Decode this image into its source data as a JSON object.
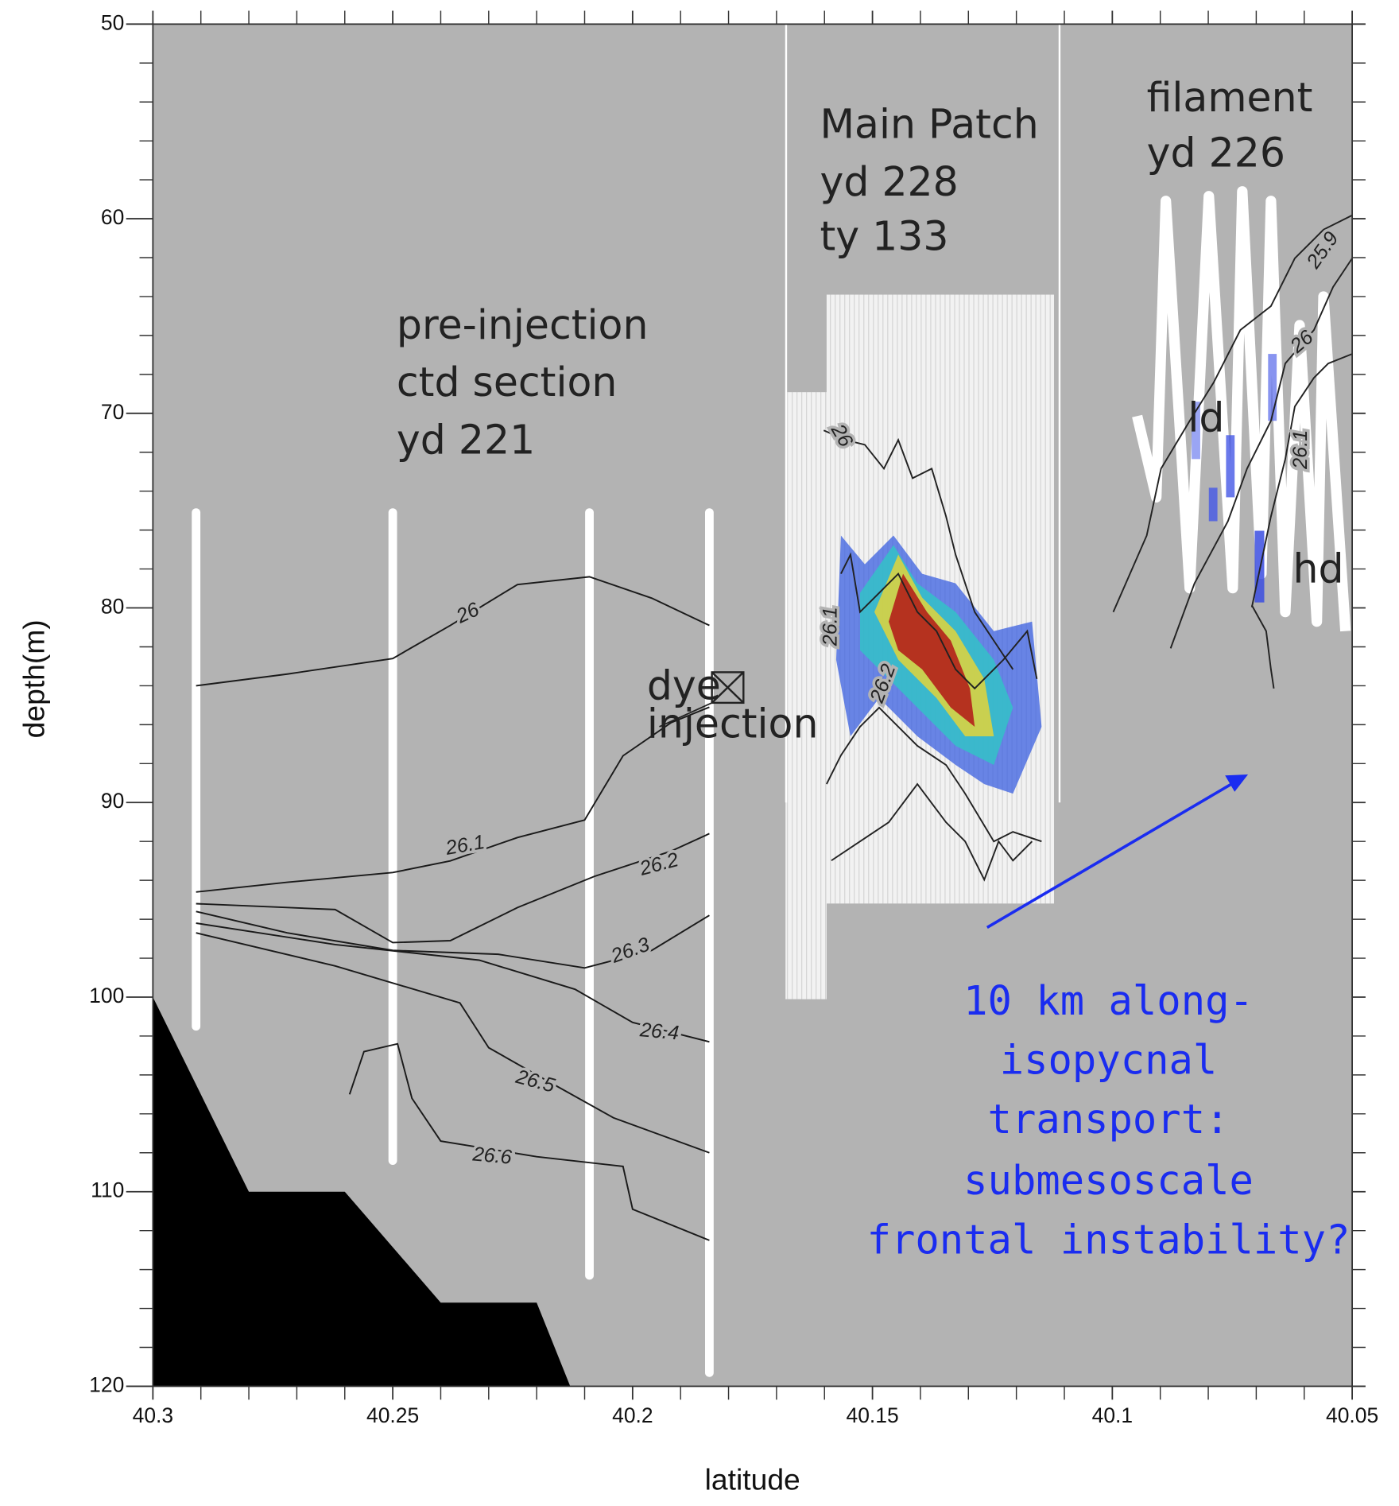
{
  "chart_data": {
    "type": "section",
    "xlabel": "latitude",
    "ylabel": "depth(m)",
    "xlim": [
      40.3,
      40.05
    ],
    "ylim": [
      50,
      120
    ],
    "xticks": [
      40.3,
      40.25,
      40.2,
      40.15,
      40.1,
      40.05
    ],
    "yticks": [
      50,
      60,
      70,
      80,
      90,
      100,
      110,
      120
    ],
    "xminorticks": [
      40.29,
      40.28,
      40.27,
      40.26,
      40.24,
      40.23,
      40.22,
      40.21,
      40.19,
      40.18,
      40.17,
      40.16,
      40.14,
      40.13,
      40.12,
      40.11,
      40.09,
      40.08,
      40.07,
      40.06
    ],
    "yminorticks": [
      52,
      54,
      56,
      58,
      62,
      64,
      66,
      68,
      72,
      74,
      76,
      78,
      82,
      84,
      86,
      88,
      92,
      94,
      96,
      98,
      102,
      104,
      106,
      108,
      112,
      114,
      116,
      118
    ],
    "background_color": "#b3b3b3",
    "contour_color": "#1a1a1a",
    "contours": [
      {
        "label": "26",
        "x": [
          40.291,
          40.272,
          40.25,
          40.238,
          40.224,
          40.209,
          40.196,
          40.184
        ],
        "y": [
          84.0,
          83.4,
          82.6,
          80.9,
          78.8,
          78.4,
          79.5,
          80.9
        ]
      },
      {
        "label": "26.1",
        "x": [
          40.291,
          40.272,
          40.25,
          40.238,
          40.224,
          40.21,
          40.202,
          40.192,
          40.184
        ],
        "y": [
          94.6,
          94.1,
          93.6,
          93.0,
          91.8,
          90.9,
          87.6,
          85.9,
          85.1
        ]
      },
      {
        "label": "26.2",
        "x": [
          40.291,
          40.262,
          40.25,
          40.238,
          40.224,
          40.208,
          40.192,
          40.184
        ],
        "y": [
          95.2,
          95.5,
          97.2,
          97.1,
          95.4,
          93.8,
          92.5,
          91.6
        ]
      },
      {
        "label": "26.3",
        "x": [
          40.291,
          40.272,
          40.25,
          40.228,
          40.21,
          40.196,
          40.184
        ],
        "y": [
          95.6,
          96.7,
          97.6,
          97.8,
          98.5,
          97.6,
          95.8
        ]
      },
      {
        "label": "26.4",
        "x": [
          40.291,
          40.262,
          40.232,
          40.212,
          40.2,
          40.184
        ],
        "y": [
          96.2,
          97.3,
          98.1,
          99.6,
          101.3,
          102.3
        ]
      },
      {
        "label": "26.5",
        "x": [
          40.291,
          40.262,
          40.236,
          40.23,
          40.22,
          40.204,
          40.184
        ],
        "y": [
          96.7,
          98.4,
          100.3,
          102.6,
          104.0,
          106.2,
          108.0
        ]
      },
      {
        "label": "26.6",
        "x": [
          40.259,
          40.256,
          40.249,
          40.246,
          40.24,
          40.22,
          40.202,
          40.2,
          40.184
        ],
        "y": [
          105.0,
          102.8,
          102.4,
          105.2,
          107.4,
          108.2,
          108.7,
          110.9,
          112.5
        ]
      }
    ],
    "bathymetry": {
      "color": "#000000",
      "x": [
        40.3,
        40.28,
        40.26,
        40.24,
        40.22,
        40.213
      ],
      "y": [
        100.0,
        110.0,
        110.0,
        115.7,
        115.7,
        120
      ]
    },
    "casts": [
      {
        "lat": 40.291,
        "top": 75.1,
        "bottom": 101.5
      },
      {
        "lat": 40.25,
        "top": 75.1,
        "bottom": 108.4
      },
      {
        "lat": 40.209,
        "top": 75.1,
        "bottom": 114.3
      },
      {
        "lat": 40.184,
        "top": 75.1,
        "bottom": 119.3
      }
    ],
    "section_dividers": [
      40.168,
      40.111
    ],
    "annotations": {
      "pre_injection": [
        "pre-injection",
        "ctd section",
        "yd 221"
      ],
      "main_patch": [
        "Main Patch",
        "yd 228",
        "ty 133"
      ],
      "filament": [
        "filament",
        "yd 226"
      ],
      "dye_injection": [
        "dye",
        "injection"
      ],
      "ld": "ld",
      "hd": "hd",
      "main_patch_contours": [
        "26",
        "26.1",
        "26.2"
      ],
      "filament_contours": [
        "25.9",
        "26",
        "26.1"
      ],
      "transport": [
        "10 km along-",
        "isopycnal",
        "transport:",
        "submesoscale",
        "frontal instability?"
      ]
    }
  }
}
